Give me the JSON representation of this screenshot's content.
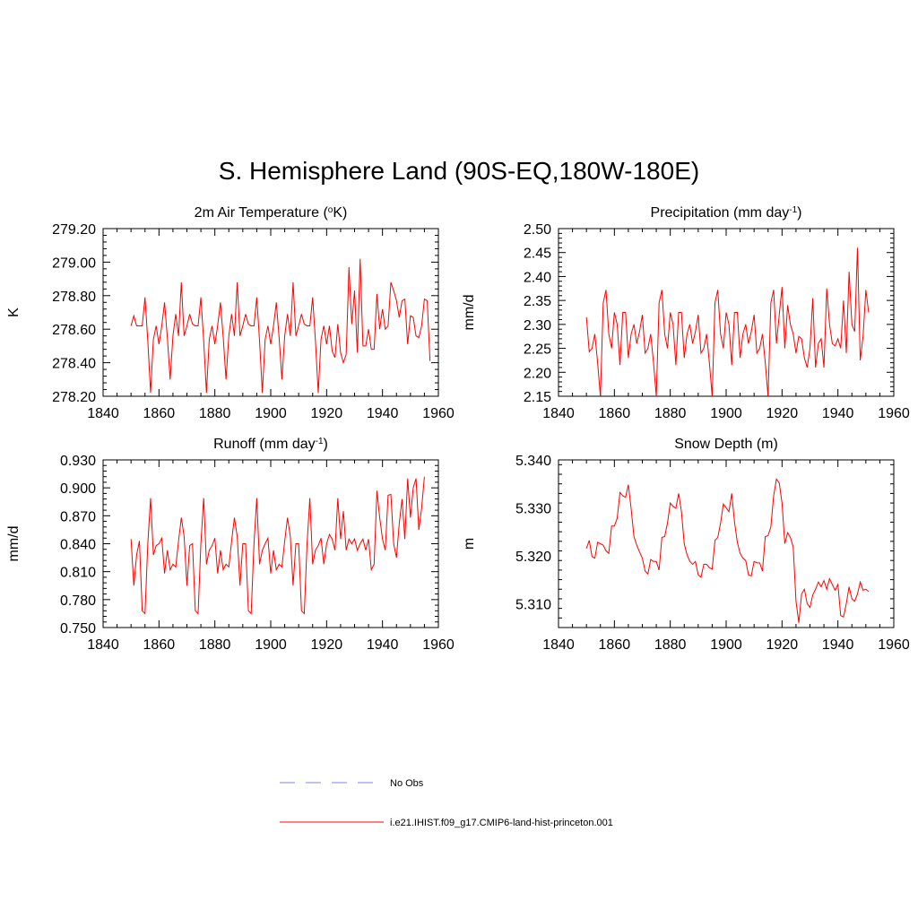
{
  "figure": {
    "title": "S. Hemisphere Land (90S-EQ,180W-180E)"
  },
  "legend": {
    "items": [
      {
        "label": "No Obs",
        "color": "#9a9af0",
        "dashed": true
      },
      {
        "label": "i.e21.IHIST.f09_g17.CMIP6-land-hist-princeton.001",
        "color": "#ff0000",
        "dashed": false
      }
    ]
  },
  "chart_data": [
    {
      "type": "line",
      "title": "2m Air Temperature (",
      "title_super": "o",
      "title_after": "K)",
      "ylabel": "K",
      "xlabel": "",
      "xlim": [
        1840,
        1960
      ],
      "xticks": [
        "1840",
        "1860",
        "1880",
        "1900",
        "1920",
        "1940",
        "1960"
      ],
      "ylim": [
        278.2,
        279.2
      ],
      "yticks": [
        "278.20",
        "278.40",
        "278.60",
        "278.80",
        "279.00",
        "279.20"
      ],
      "color": "#ff0000",
      "x_start": 1850,
      "values": [
        278.62,
        278.68,
        278.62,
        278.62,
        278.62,
        278.79,
        278.53,
        278.22,
        278.54,
        278.62,
        278.51,
        278.62,
        278.76,
        278.55,
        278.3,
        278.56,
        278.69,
        278.56,
        278.88,
        278.56,
        278.62,
        278.69,
        278.63,
        278.62,
        278.62,
        278.79,
        278.53,
        278.22,
        278.54,
        278.62,
        278.51,
        278.62,
        278.76,
        278.55,
        278.3,
        278.56,
        278.69,
        278.56,
        278.88,
        278.56,
        278.62,
        278.69,
        278.63,
        278.62,
        278.62,
        278.79,
        278.53,
        278.22,
        278.54,
        278.62,
        278.51,
        278.62,
        278.76,
        278.55,
        278.3,
        278.56,
        278.69,
        278.56,
        278.88,
        278.56,
        278.62,
        278.69,
        278.63,
        278.62,
        278.62,
        278.79,
        278.53,
        278.22,
        278.54,
        278.62,
        278.51,
        278.62,
        278.47,
        278.43,
        278.63,
        278.46,
        278.4,
        278.45,
        278.97,
        278.63,
        278.83,
        278.46,
        279.02,
        278.5,
        278.5,
        278.6,
        278.48,
        278.48,
        278.81,
        278.6,
        278.72,
        278.6,
        278.62,
        278.88,
        278.83,
        278.77,
        278.67,
        278.77,
        278.78,
        278.51,
        278.68,
        278.67,
        278.56,
        278.55,
        278.62,
        278.78,
        278.77,
        278.41
      ]
    },
    {
      "type": "line",
      "title": "Precipitation (mm day",
      "title_super": "-1",
      "title_after": ")",
      "ylabel": "mm/d",
      "xlabel": "",
      "xlim": [
        1840,
        1960
      ],
      "xticks": [
        "1840",
        "1860",
        "1880",
        "1900",
        "1920",
        "1940",
        "1960"
      ],
      "ylim": [
        2.15,
        2.5
      ],
      "yticks": [
        "2.15",
        "2.20",
        "2.25",
        "2.30",
        "2.35",
        "2.40",
        "2.45",
        "2.50"
      ],
      "color": "#ff0000",
      "x_start": 1850,
      "values": [
        2.315,
        2.243,
        2.25,
        2.28,
        2.22,
        2.15,
        2.345,
        2.372,
        2.28,
        2.25,
        2.325,
        2.3,
        2.215,
        2.325,
        2.325,
        2.23,
        2.28,
        2.3,
        2.26,
        2.285,
        2.32,
        2.24,
        2.25,
        2.28,
        2.22,
        2.15,
        2.345,
        2.372,
        2.28,
        2.25,
        2.325,
        2.3,
        2.215,
        2.325,
        2.325,
        2.23,
        2.28,
        2.3,
        2.26,
        2.285,
        2.32,
        2.24,
        2.25,
        2.28,
        2.22,
        2.15,
        2.345,
        2.372,
        2.28,
        2.25,
        2.325,
        2.3,
        2.215,
        2.325,
        2.325,
        2.23,
        2.28,
        2.3,
        2.26,
        2.285,
        2.32,
        2.24,
        2.25,
        2.28,
        2.22,
        2.15,
        2.345,
        2.372,
        2.26,
        2.32,
        2.378,
        2.25,
        2.34,
        2.3,
        2.28,
        2.24,
        2.275,
        2.27,
        2.23,
        2.21,
        2.25,
        2.355,
        2.21,
        2.26,
        2.27,
        2.21,
        2.375,
        2.3,
        2.26,
        2.255,
        2.27,
        2.25,
        2.35,
        2.24,
        2.41,
        2.3,
        2.285,
        2.46,
        2.225,
        2.275,
        2.372,
        2.325
      ]
    },
    {
      "type": "line",
      "title": "Runoff (mm day",
      "title_super": "-1",
      "title_after": ")",
      "ylabel": "mm/d",
      "xlabel": "",
      "xlim": [
        1840,
        1960
      ],
      "xticks": [
        "1840",
        "1860",
        "1880",
        "1900",
        "1920",
        "1940",
        "1960"
      ],
      "ylim": [
        0.75,
        0.93
      ],
      "yticks": [
        "0.750",
        "0.780",
        "0.810",
        "0.840",
        "0.870",
        "0.900",
        "0.930"
      ],
      "color": "#ff0000",
      "x_start": 1850,
      "values": [
        0.845,
        0.795,
        0.828,
        0.843,
        0.768,
        0.765,
        0.84,
        0.889,
        0.828,
        0.838,
        0.84,
        0.846,
        0.808,
        0.833,
        0.812,
        0.818,
        0.815,
        0.843,
        0.868,
        0.848,
        0.795,
        0.838,
        0.84,
        0.768,
        0.765,
        0.84,
        0.889,
        0.818,
        0.833,
        0.838,
        0.846,
        0.808,
        0.833,
        0.812,
        0.818,
        0.815,
        0.843,
        0.868,
        0.848,
        0.795,
        0.84,
        0.84,
        0.768,
        0.765,
        0.84,
        0.889,
        0.818,
        0.833,
        0.84,
        0.846,
        0.808,
        0.833,
        0.812,
        0.818,
        0.815,
        0.843,
        0.868,
        0.848,
        0.795,
        0.84,
        0.84,
        0.768,
        0.765,
        0.84,
        0.889,
        0.818,
        0.833,
        0.838,
        0.846,
        0.818,
        0.84,
        0.85,
        0.845,
        0.833,
        0.889,
        0.845,
        0.875,
        0.833,
        0.845,
        0.84,
        0.845,
        0.833,
        0.84,
        0.845,
        0.833,
        0.845,
        0.812,
        0.818,
        0.897,
        0.868,
        0.845,
        0.833,
        0.892,
        0.893,
        0.84,
        0.825,
        0.862,
        0.888,
        0.845,
        0.91,
        0.868,
        0.9,
        0.91,
        0.855,
        0.878,
        0.912
      ]
    },
    {
      "type": "line",
      "title": "Snow Depth (m)",
      "title_super": "",
      "title_after": "",
      "ylabel": "m",
      "xlabel": "",
      "xlim": [
        1840,
        1960
      ],
      "xticks": [
        "1840",
        "1860",
        "1880",
        "1900",
        "1920",
        "1940",
        "1960"
      ],
      "ylim": [
        5.305,
        5.34
      ],
      "yticks": [
        "5.310",
        "5.320",
        "5.330",
        "5.340"
      ],
      "color": "#ff0000",
      "x_start": 1850,
      "values": [
        5.3215,
        5.3232,
        5.3198,
        5.3195,
        5.3228,
        5.3225,
        5.3222,
        5.321,
        5.3205,
        5.3262,
        5.3262,
        5.3278,
        5.3332,
        5.3325,
        5.3322,
        5.3348,
        5.3298,
        5.324,
        5.3222,
        5.3208,
        5.3195,
        5.3168,
        5.3162,
        5.3192,
        5.3188,
        5.3188,
        5.317,
        5.3238,
        5.324,
        5.3268,
        5.331,
        5.3303,
        5.3299,
        5.333,
        5.3292,
        5.3225,
        5.3202,
        5.3188,
        5.3182,
        5.3188,
        5.316,
        5.3155,
        5.3182,
        5.3182,
        5.3175,
        5.3172,
        5.3232,
        5.3238,
        5.3268,
        5.3308,
        5.33,
        5.3292,
        5.333,
        5.327,
        5.3228,
        5.3205,
        5.3195,
        5.319,
        5.316,
        5.3158,
        5.3188,
        5.3185,
        5.3185,
        5.3168,
        5.324,
        5.3242,
        5.326,
        5.3325,
        5.336,
        5.3352,
        5.331,
        5.3225,
        5.3248,
        5.3238,
        5.3218,
        5.3105,
        5.306,
        5.312,
        5.313,
        5.31,
        5.3092,
        5.3118,
        5.313,
        5.3145,
        5.3135,
        5.3148,
        5.313,
        5.3152,
        5.314,
        5.3128,
        5.314,
        5.3075,
        5.3072,
        5.31,
        5.3135,
        5.311,
        5.3105,
        5.312,
        5.3145,
        5.3128,
        5.313,
        5.3125
      ]
    }
  ]
}
